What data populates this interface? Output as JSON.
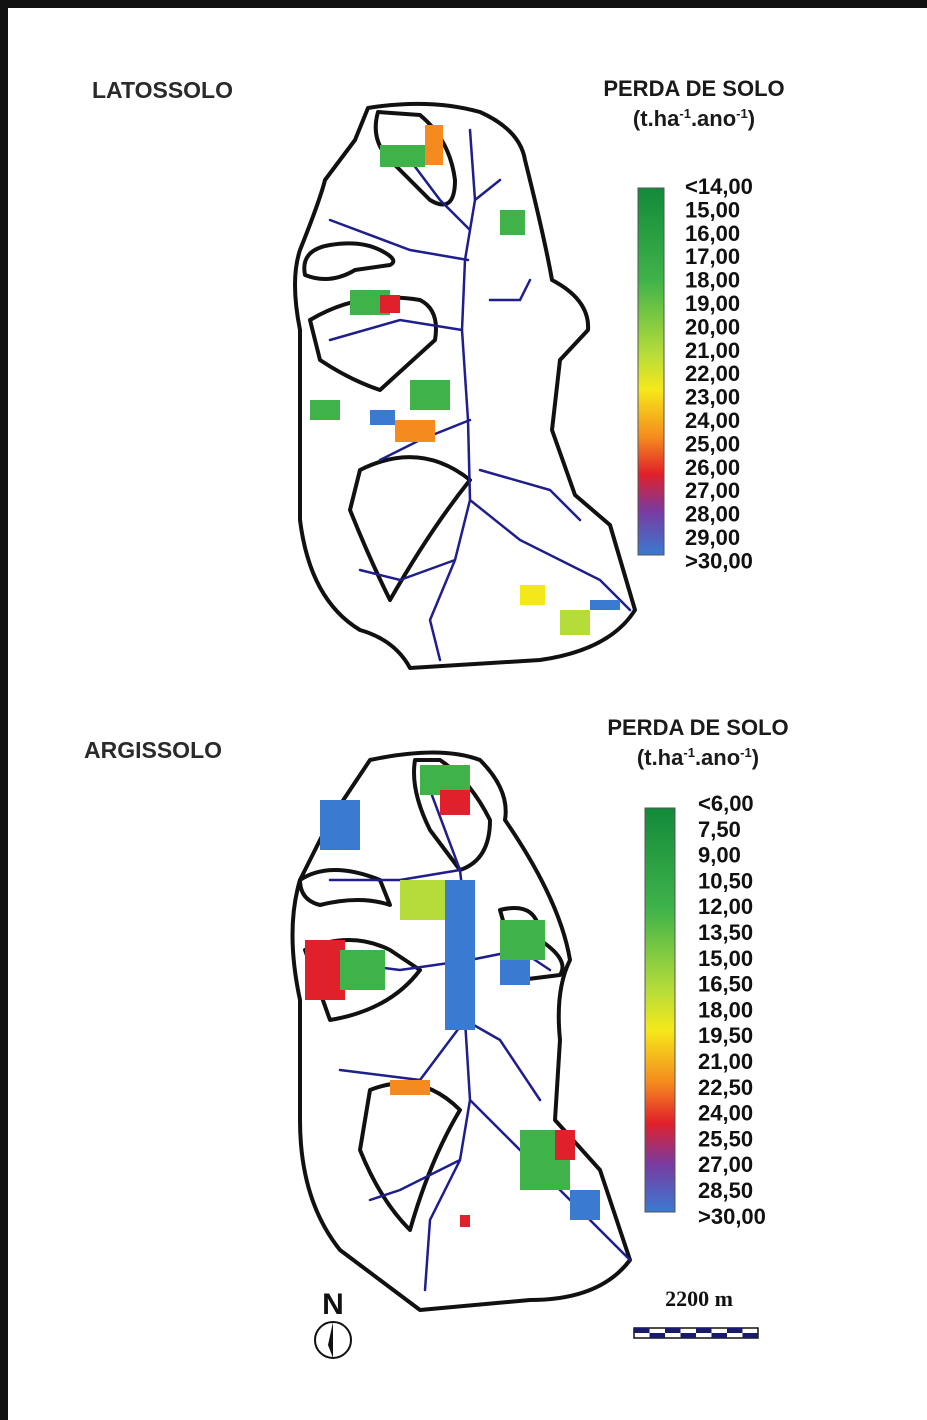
{
  "panels": [
    {
      "title": "LATOSSOLO",
      "legend": {
        "title": "PERDA DE SOLO",
        "unit": [
          "(t.ha",
          "-1",
          ".ano",
          "-1",
          ")"
        ],
        "labels": [
          "<14,00",
          "15,00",
          "16,00",
          "17,00",
          "18,00",
          "19,00",
          "20,00",
          "21,00",
          "22,00",
          "23,00",
          "24,00",
          "25,00",
          "26,00",
          "27,00",
          "28,00",
          "29,00",
          ">30,00"
        ]
      }
    },
    {
      "title": "ARGISSOLO",
      "legend": {
        "title": "PERDA DE SOLO",
        "unit": [
          "(t.ha",
          "-1",
          ".ano",
          "-1",
          ")"
        ],
        "labels": [
          "<6,00",
          "7,50",
          "9,00",
          "10,50",
          "12,00",
          "13,50",
          "15,00",
          "16,50",
          "18,00",
          "19,50",
          "21,00",
          "22,50",
          "24,00",
          "25,50",
          "27,00",
          "28,50",
          ">30,00"
        ]
      }
    }
  ],
  "north": "N",
  "scale": "2200 m"
}
